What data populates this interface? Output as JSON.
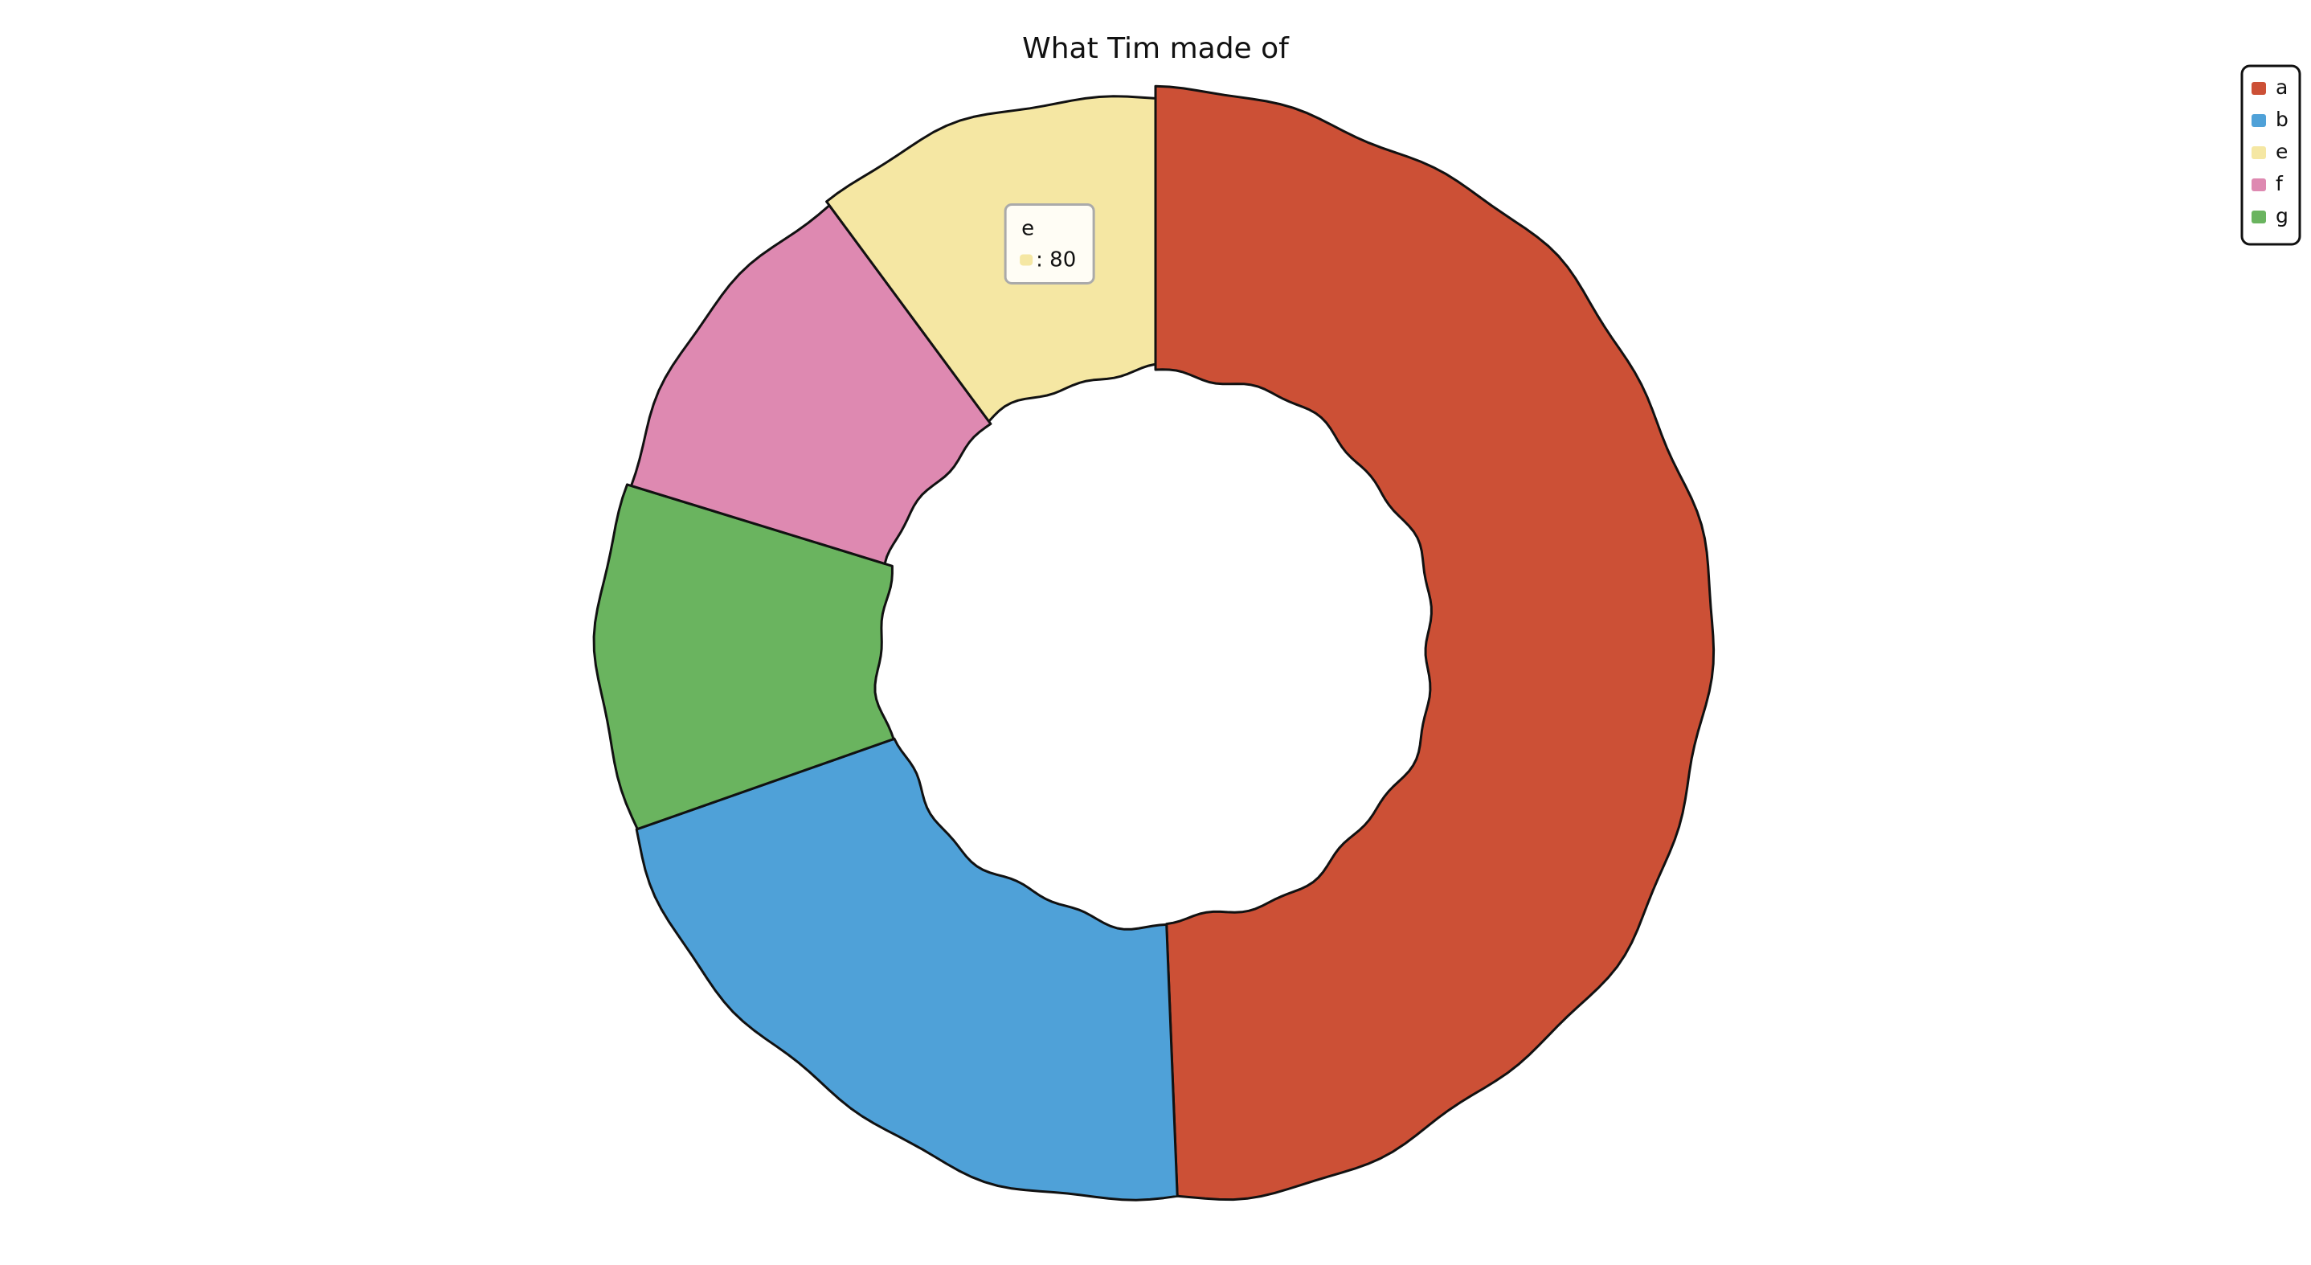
{
  "chart_data": {
    "type": "pie",
    "variant": "donut",
    "title": "What Tim made of",
    "categories": [
      "a",
      "b",
      "e",
      "f",
      "g"
    ],
    "values": [
      390,
      160,
      80,
      80,
      80
    ],
    "colors": [
      "#cc5036",
      "#4fa1d8",
      "#f5e7a3",
      "#de89b1",
      "#6ab45f"
    ],
    "legend": {
      "placement": "top-right",
      "entries": [
        "a",
        "b",
        "e",
        "f",
        "g"
      ]
    },
    "tooltip": {
      "title": "e",
      "value_text": ": 80",
      "color": "#f5e7a3"
    },
    "style": "hand-drawn"
  }
}
